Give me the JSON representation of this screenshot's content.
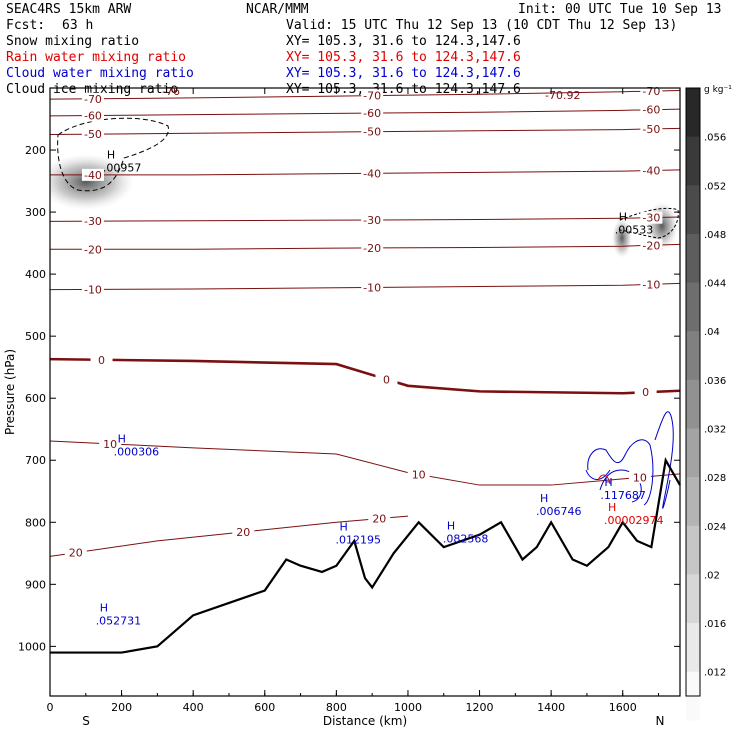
{
  "header": {
    "model": "SEAC4RS 15km ARW",
    "center": "NCAR/MMM",
    "init": "Init: 00 UTC Tue 10 Sep 13",
    "fcst_label": "Fcst:",
    "fcst_value": "63 h",
    "valid": "Valid: 15 UTC Thu 12 Sep 13 (10 CDT Thu 12 Sep 13)"
  },
  "fields": [
    {
      "name": "Snow mixing ratio",
      "color": "#000000",
      "xy": "XY= 105.3, 31.6 to 124.3,147.6"
    },
    {
      "name": "Rain water mixing ratio",
      "color": "#e00000",
      "xy": "XY= 105.3, 31.6 to 124.3,147.6"
    },
    {
      "name": "Cloud water mixing ratio",
      "color": "#0000cc",
      "xy": "XY= 105.3, 31.6 to 124.3,147.6"
    },
    {
      "name": "Cloud ice mixing ratio",
      "color": "#000000",
      "xy": "XY= 105.3, 31.6 to 124.3,147.6"
    }
  ],
  "chart_data": {
    "type": "cross-section",
    "xlabel": "Distance (km)",
    "ylabel": "Pressure (hPa)",
    "xlim": [
      0,
      1760
    ],
    "ylim": [
      1080,
      100
    ],
    "x_ticks": [
      0,
      200,
      400,
      600,
      800,
      1000,
      1200,
      1400,
      1600
    ],
    "y_ticks": [
      200,
      300,
      400,
      500,
      600,
      700,
      800,
      900,
      1000
    ],
    "endpoints": {
      "left": "S",
      "right": "N"
    },
    "colorbar": {
      "unit": "g kg⁻¹",
      "ticks": [
        ".056",
        ".052",
        ".048",
        ".044",
        ".04",
        ".036",
        ".032",
        ".028",
        ".024",
        ".02",
        ".016",
        ".012"
      ]
    },
    "temperature_contours": [
      {
        "value": -70,
        "points": [
          [
            0,
            118
          ],
          [
            400,
            116
          ],
          [
            800,
            113
          ],
          [
            1200,
            110
          ],
          [
            1600,
            106
          ],
          [
            1760,
            104
          ]
        ]
      },
      {
        "value": -60,
        "points": [
          [
            0,
            145
          ],
          [
            400,
            143
          ],
          [
            800,
            141
          ],
          [
            1200,
            139
          ],
          [
            1600,
            136
          ],
          [
            1760,
            134
          ]
        ]
      },
      {
        "value": -50,
        "points": [
          [
            0,
            175
          ],
          [
            400,
            173
          ],
          [
            800,
            171
          ],
          [
            1200,
            169
          ],
          [
            1600,
            167
          ],
          [
            1760,
            165
          ]
        ]
      },
      {
        "value": -40,
        "points": [
          [
            0,
            240
          ],
          [
            400,
            240
          ],
          [
            800,
            238
          ],
          [
            1200,
            236
          ],
          [
            1600,
            234
          ],
          [
            1760,
            232
          ]
        ]
      },
      {
        "value": -30,
        "points": [
          [
            0,
            315
          ],
          [
            400,
            314
          ],
          [
            800,
            313
          ],
          [
            1200,
            312
          ],
          [
            1600,
            310
          ],
          [
            1760,
            308
          ]
        ]
      },
      {
        "value": -20,
        "points": [
          [
            0,
            360
          ],
          [
            400,
            360
          ],
          [
            800,
            358
          ],
          [
            1200,
            357
          ],
          [
            1600,
            355
          ],
          [
            1760,
            352
          ]
        ]
      },
      {
        "value": -10,
        "points": [
          [
            0,
            425
          ],
          [
            400,
            424
          ],
          [
            800,
            422
          ],
          [
            1200,
            420
          ],
          [
            1600,
            418
          ],
          [
            1760,
            415
          ]
        ]
      },
      {
        "value": 0,
        "points": [
          [
            0,
            537
          ],
          [
            400,
            540
          ],
          [
            800,
            545
          ],
          [
            1000,
            580
          ],
          [
            1200,
            589
          ],
          [
            1600,
            592
          ],
          [
            1760,
            588
          ]
        ]
      },
      {
        "value": 10,
        "points": [
          [
            0,
            669
          ],
          [
            400,
            680
          ],
          [
            800,
            690
          ],
          [
            1000,
            720
          ],
          [
            1200,
            740
          ],
          [
            1400,
            740
          ],
          [
            1600,
            730
          ],
          [
            1760,
            722
          ]
        ]
      },
      {
        "value": 20,
        "points": [
          [
            0,
            855
          ],
          [
            300,
            830
          ],
          [
            600,
            812
          ],
          [
            800,
            800
          ],
          [
            1000,
            790
          ]
        ]
      }
    ],
    "freezing_level": 0,
    "terrain": [
      [
        0,
        1010
      ],
      [
        200,
        1010
      ],
      [
        300,
        1000
      ],
      [
        400,
        950
      ],
      [
        500,
        930
      ],
      [
        600,
        910
      ],
      [
        660,
        860
      ],
      [
        700,
        870
      ],
      [
        760,
        880
      ],
      [
        800,
        870
      ],
      [
        850,
        830
      ],
      [
        880,
        890
      ],
      [
        900,
        905
      ],
      [
        960,
        850
      ],
      [
        1030,
        800
      ],
      [
        1100,
        840
      ],
      [
        1200,
        820
      ],
      [
        1260,
        800
      ],
      [
        1320,
        860
      ],
      [
        1360,
        840
      ],
      [
        1400,
        800
      ],
      [
        1460,
        860
      ],
      [
        1500,
        870
      ],
      [
        1560,
        840
      ],
      [
        1600,
        800
      ],
      [
        1640,
        830
      ],
      [
        1680,
        840
      ],
      [
        1720,
        700
      ],
      [
        1760,
        740
      ]
    ],
    "annotations": [
      {
        "label": "H",
        "text": ".00957",
        "x": 170,
        "p": 220,
        "color": "#000000"
      },
      {
        "label": "H",
        "text": ".00533",
        "x": 1600,
        "p": 320,
        "color": "#000000"
      },
      {
        "label": "H",
        "text": ".000306",
        "x": 200,
        "p": 678,
        "color": "#0000cc"
      },
      {
        "label": "H",
        "text": ".117687",
        "x": 1560,
        "p": 748,
        "color": "#0000cc"
      },
      {
        "label": "H",
        "text": ".006746",
        "x": 1380,
        "p": 774,
        "color": "#0000cc"
      },
      {
        "label": "H",
        "text": ".00002974",
        "x": 1570,
        "p": 788,
        "color": "#e00000"
      },
      {
        "label": "H",
        "text": ".012195",
        "x": 820,
        "p": 820,
        "color": "#0000cc"
      },
      {
        "label": "H",
        "text": ".082568",
        "x": 1120,
        "p": 818,
        "color": "#0000cc"
      },
      {
        "label": "H",
        "text": ".052731",
        "x": 150,
        "p": 950,
        "color": "#0000cc"
      }
    ],
    "header_fragments": [
      "-76",
      "-70.92"
    ]
  }
}
